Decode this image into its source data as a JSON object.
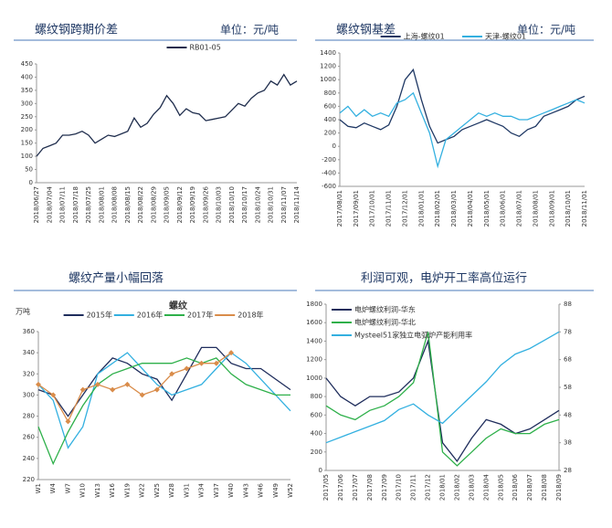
{
  "chart_data": [
    {
      "type": "line",
      "title": "螺纹钢跨期价差",
      "subtitle": "单位：元/吨",
      "legend": "top",
      "categories": [
        "2018/06/27",
        null,
        "2018/07/04",
        null,
        "2018/07/11",
        null,
        "2018/07/18",
        null,
        "2018/07/25",
        null,
        "2018/08/01",
        null,
        "2018/08/08",
        null,
        "2018/08/15",
        null,
        "2018/08/22",
        null,
        "2018/08/29",
        null,
        "2018/09/05",
        null,
        "2018/09/12",
        null,
        "2018/09/19",
        null,
        "2018/09/26",
        null,
        "2018/10/03",
        null,
        "2018/10/10",
        null,
        "2018/10/17",
        null,
        "2018/10/24",
        null,
        "2018/10/31",
        null,
        "2018/11/07",
        null,
        "2018/11/14"
      ],
      "series": [
        {
          "name": "RB01-05",
          "color": "#1f2d4d",
          "values": [
            100,
            130,
            140,
            150,
            180,
            180,
            185,
            195,
            180,
            150,
            165,
            180,
            175,
            185,
            195,
            245,
            210,
            225,
            260,
            285,
            330,
            300,
            255,
            280,
            265,
            260,
            235,
            240,
            245,
            250,
            275,
            300,
            290,
            320,
            340,
            350,
            385,
            370,
            410,
            370,
            385
          ]
        }
      ],
      "ylim": [
        0,
        450
      ],
      "yticks": [
        0,
        50,
        100,
        150,
        200,
        250,
        300,
        350,
        400,
        450
      ]
    },
    {
      "type": "line",
      "title": "螺纹钢基差",
      "subtitle": "单位：元/吨",
      "legend": "top",
      "categories": [
        "2017/08/01",
        null,
        "2017/09/01",
        null,
        "2017/10/01",
        null,
        "2017/11/01",
        null,
        "2017/12/01",
        null,
        "2018/01/01",
        null,
        "2018/02/01",
        null,
        "2018/03/01",
        null,
        "2018/04/01",
        null,
        "2018/05/01",
        null,
        "2018/06/01",
        null,
        "2018/07/01",
        null,
        "2018/08/01",
        null,
        "2018/09/01",
        null,
        "2018/10/01",
        null,
        "2018/11/01"
      ],
      "series": [
        {
          "name": "上海-螺纹01",
          "color": "#1f3864",
          "values": [
            400,
            300,
            280,
            350,
            300,
            250,
            320,
            600,
            1000,
            1150,
            700,
            300,
            50,
            100,
            150,
            250,
            300,
            350,
            400,
            350,
            300,
            200,
            150,
            250,
            300,
            450,
            500,
            550,
            600,
            700,
            750
          ]
        },
        {
          "name": "天津-螺纹01",
          "color": "#33b0e0",
          "values": [
            500,
            600,
            450,
            550,
            450,
            500,
            450,
            650,
            700,
            800,
            500,
            200,
            -300,
            100,
            200,
            300,
            400,
            500,
            450,
            500,
            450,
            450,
            400,
            400,
            450,
            500,
            550,
            600,
            650,
            700,
            650
          ]
        }
      ],
      "ylim": [
        -600,
        1400
      ],
      "yticks": [
        -600,
        -400,
        -200,
        0,
        200,
        400,
        600,
        800,
        1000,
        1200,
        1400
      ]
    },
    {
      "type": "line",
      "title": "螺纹产量小幅回落",
      "ylabel": "万吨",
      "annotation": "螺纹",
      "legend": "top",
      "categories": [
        "W1",
        "W4",
        "W7",
        "W10",
        "W13",
        "W16",
        "W19",
        "W22",
        "W25",
        "W28",
        "W31",
        "W34",
        "W37",
        "W40",
        "W43",
        "W46",
        "W49",
        "W52"
      ],
      "series": [
        {
          "name": "2015年",
          "color": "#1f2d5c",
          "values": [
            305,
            300,
            280,
            300,
            320,
            335,
            330,
            320,
            315,
            295,
            320,
            345,
            345,
            330,
            325,
            325,
            315,
            305
          ]
        },
        {
          "name": "2016年",
          "color": "#33b0e0",
          "values": [
            310,
            295,
            250,
            270,
            320,
            330,
            340,
            325,
            310,
            300,
            305,
            310,
            325,
            340,
            330,
            315,
            300,
            285
          ]
        },
        {
          "name": "2017年",
          "color": "#2eb04a",
          "values": [
            270,
            235,
            265,
            290,
            310,
            320,
            325,
            330,
            330,
            330,
            335,
            330,
            335,
            320,
            310,
            305,
            300,
            300
          ]
        },
        {
          "name": "2018年",
          "color": "#d98c4a",
          "marker": "diamond",
          "values": [
            310,
            300,
            275,
            305,
            310,
            305,
            310,
            300,
            305,
            320,
            325,
            330,
            330,
            340,
            null,
            null,
            null,
            null
          ]
        }
      ],
      "ylim": [
        220,
        360
      ],
      "yticks": [
        220,
        240,
        260,
        280,
        300,
        320,
        340,
        360
      ]
    },
    {
      "type": "line",
      "title": "利润可观，电炉开工率高位运行",
      "legend": "upper left",
      "categories": [
        "2017/05",
        "2017/06",
        "2017/07",
        "2017/08",
        "2017/09",
        "2017/10",
        "2017/11",
        "2017/12",
        "2018/01",
        "2018/02",
        "2018/03",
        "2018/04",
        "2018/05",
        "2018/06",
        "2018/07",
        "2018/08",
        "2018/09"
      ],
      "series": [
        {
          "name": "电炉螺纹利润-华东",
          "color": "#1f2d5c",
          "values": [
            1000,
            800,
            700,
            800,
            800,
            850,
            1000,
            1400,
            300,
            100,
            350,
            550,
            500,
            400,
            450,
            550,
            650
          ]
        },
        {
          "name": "电炉螺纹利润-华北",
          "color": "#2eb04a",
          "values": [
            700,
            600,
            550,
            650,
            700,
            800,
            950,
            1500,
            200,
            50,
            200,
            350,
            450,
            400,
            400,
            500,
            550
          ]
        },
        {
          "name": "Mysteel51家独立电弧炉产能利用率",
          "color": "#33b0e0",
          "axis": "y2",
          "values": [
            38,
            40,
            42,
            44,
            46,
            50,
            52,
            48,
            45,
            50,
            55,
            60,
            66,
            70,
            72,
            75,
            78
          ]
        }
      ],
      "ylim": [
        0,
        1800
      ],
      "yticks": [
        0,
        200,
        400,
        600,
        800,
        1000,
        1200,
        1400,
        1600,
        1800
      ],
      "y2lim": [
        28,
        88
      ],
      "y2ticks": [
        28,
        38,
        48,
        58,
        68,
        78,
        88
      ]
    }
  ]
}
